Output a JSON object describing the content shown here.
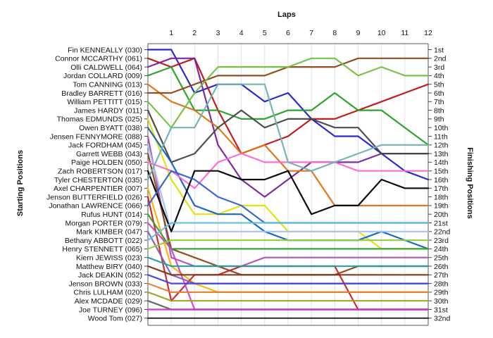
{
  "chart_data": {
    "type": "line",
    "title": "",
    "xlabel": "Laps",
    "ylabel_left": "Starting Positions",
    "ylabel_right": "Finishing Positions",
    "x_ticks": [
      "1",
      "2",
      "3",
      "4",
      "5",
      "6",
      "7",
      "8",
      "9",
      "10",
      "11",
      "12"
    ],
    "finish_labels": [
      "1st",
      "2nd",
      "3rd",
      "4th",
      "5th",
      "6th",
      "7th",
      "8th",
      "9th",
      "10th",
      "11th",
      "12th",
      "13th",
      "14th",
      "15th",
      "16th",
      "17th",
      "18th",
      "19th",
      "20th",
      "21st",
      "22nd",
      "23rd",
      "24th",
      "25th",
      "26th",
      "27th",
      "28th",
      "29th",
      "30th",
      "31st",
      "32nd"
    ],
    "grid": "vertical",
    "series": [
      {
        "name": "Fin KENNEALLY (030)",
        "color": "#1f1fd0",
        "positions": [
          1,
          1,
          6,
          5,
          5,
          7,
          6,
          9,
          11,
          11,
          13,
          15,
          16
        ]
      },
      {
        "name": "Connor MCCARTHY (061)",
        "color": "#c01010",
        "positions": [
          2,
          3,
          2,
          8,
          13,
          12,
          11,
          9,
          9,
          8,
          7,
          6,
          5
        ]
      },
      {
        "name": "Olli CALDWELL (064)",
        "color": "#7a1fa0",
        "positions": [
          3,
          2,
          2,
          12,
          16,
          18,
          16,
          14,
          14,
          14,
          13,
          13,
          13
        ]
      },
      {
        "name": "Jordan COLLARD (009)",
        "color": "#20a020",
        "positions": [
          4,
          3,
          8,
          8,
          9,
          9,
          8,
          8,
          6,
          8,
          8,
          10,
          12
        ]
      },
      {
        "name": "Tom CANNING (013)",
        "color": "#e07010",
        "positions": [
          5,
          7,
          8,
          10,
          13,
          12,
          15,
          15,
          19,
          19,
          19,
          19,
          19
        ]
      },
      {
        "name": "Bradley BARRETT (016)",
        "color": "#8b4513",
        "positions": [
          6,
          6,
          5,
          4,
          4,
          4,
          3,
          3,
          3,
          2,
          2,
          2,
          2
        ]
      },
      {
        "name": "William PETTITT (015)",
        "color": "#70c040",
        "positions": [
          7,
          10,
          6,
          3,
          3,
          3,
          3,
          2,
          2,
          4,
          3,
          4,
          4
        ]
      },
      {
        "name": "James HARDY (011)",
        "color": "#444444",
        "positions": [
          8,
          14,
          13,
          10,
          8,
          10,
          9,
          9,
          10,
          10,
          13,
          13,
          13
        ]
      },
      {
        "name": "Thomas EDMUNDS (025)",
        "color": "#e0e000",
        "positions": [
          9,
          16,
          20,
          20,
          19,
          19,
          22,
          22,
          22,
          22,
          24,
          24,
          24
        ]
      },
      {
        "name": "Owen BYATT (038)",
        "color": "#1060c0",
        "positions": [
          10,
          14,
          19,
          20,
          20,
          22,
          23,
          23,
          23,
          23,
          22,
          23,
          24
        ]
      },
      {
        "name": "Jensen FENNYMORE (088)",
        "color": "#b050b0",
        "positions": [
          11,
          25,
          26,
          26,
          26,
          25,
          25,
          25,
          25,
          25,
          25,
          25,
          25
        ]
      },
      {
        "name": "Jack FORDHAM (045)",
        "color": "#a0c0ff",
        "positions": [
          12,
          22,
          22,
          22,
          22,
          22,
          22,
          22,
          22,
          22,
          22,
          22,
          22
        ]
      },
      {
        "name": "Garrett WEBB (043)",
        "color": "#8b4513",
        "positions": [
          13,
          24,
          25,
          26,
          27,
          27,
          27,
          27,
          27,
          26,
          26,
          26,
          26
        ]
      },
      {
        "name": "Paige HOLDEN (050)",
        "color": "#ff66cc",
        "positions": [
          14,
          15,
          17,
          14,
          13,
          14,
          14,
          14,
          14,
          15,
          15,
          15,
          15
        ]
      },
      {
        "name": "Zach ROBERTSON (017)",
        "color": "#000000",
        "positions": [
          15,
          22,
          15,
          15,
          16,
          16,
          15,
          20,
          19,
          19,
          16,
          17,
          17
        ]
      },
      {
        "name": "Tyler CHESTERTON (035)",
        "color": "#70b0b0",
        "positions": [
          16,
          10,
          10,
          5,
          5,
          5,
          14,
          15,
          14,
          13,
          12,
          12,
          12
        ]
      },
      {
        "name": "Axel CHARPENTIER (007)",
        "color": "#ffb000",
        "positions": [
          17,
          26,
          28,
          29,
          29,
          29,
          29,
          29,
          29,
          29,
          29,
          29,
          29
        ]
      },
      {
        "name": "Jenson BUTTERFIELD (026)",
        "color": "#d02020",
        "positions": [
          18,
          30,
          27,
          27,
          26,
          26,
          26,
          26,
          26,
          31,
          31,
          31,
          31
        ]
      },
      {
        "name": "Jonathan LAWRENCE (066)",
        "color": "#3060d0",
        "positions": [
          19,
          15,
          16,
          18,
          19,
          21,
          21,
          21,
          21,
          21,
          21,
          21,
          21
        ]
      },
      {
        "name": "Rufus HUNT (014)",
        "color": "#30a030",
        "positions": [
          20,
          24,
          24,
          24,
          24,
          24,
          24,
          24,
          24,
          24,
          24,
          24,
          24
        ]
      },
      {
        "name": "Morgan PORTER (079)",
        "color": "#cc44cc",
        "positions": [
          21,
          24,
          31,
          31,
          31,
          31,
          31,
          31,
          31,
          31,
          31,
          31,
          31
        ]
      },
      {
        "name": "Mark KIMBER (047)",
        "color": "#8060c0",
        "positions": [
          22,
          27,
          28,
          28,
          28,
          28,
          28,
          28,
          28,
          28,
          28,
          28,
          28
        ]
      },
      {
        "name": "Bethany ABBOTT (022)",
        "color": "#60c0e0",
        "positions": [
          23,
          21,
          21,
          21,
          21,
          21,
          21,
          21,
          21,
          21,
          21,
          21,
          21
        ]
      },
      {
        "name": "Henry STENNETT (065)",
        "color": "#90d040",
        "positions": [
          24,
          23,
          23,
          23,
          23,
          23,
          23,
          23,
          23,
          23,
          23,
          23,
          23
        ]
      },
      {
        "name": "Kiern JEWISS (023)",
        "color": "#20a0a0",
        "positions": [
          25,
          26,
          26,
          26,
          26,
          26,
          26,
          26,
          26,
          26,
          26,
          26,
          26
        ]
      },
      {
        "name": "Matthew BIRY (040)",
        "color": "#803010",
        "positions": [
          26,
          27,
          27,
          27,
          27,
          27,
          27,
          27,
          27,
          27,
          27,
          27,
          27
        ]
      },
      {
        "name": "Jack DEAKIN (052)",
        "color": "#4040e0",
        "positions": [
          27,
          28,
          28,
          28,
          28,
          28,
          28,
          28,
          28,
          28,
          28,
          28,
          28
        ]
      },
      {
        "name": "Jenson BROWN (033)",
        "color": "#e08030",
        "positions": [
          28,
          29,
          29,
          29,
          29,
          29,
          29,
          29,
          29,
          29,
          29,
          29,
          29
        ]
      },
      {
        "name": "Chris LULHAM (020)",
        "color": "#a0a020",
        "positions": [
          29,
          30,
          30,
          30,
          30,
          30,
          30,
          30,
          30,
          30,
          30,
          30,
          30
        ]
      },
      {
        "name": "Alex MCDADE (029)",
        "color": "#606060",
        "positions": [
          30,
          31,
          31,
          31,
          31,
          31,
          31,
          31,
          31,
          31,
          31,
          31,
          31
        ]
      },
      {
        "name": "Joe TURNEY (096)",
        "color": "#d030d0",
        "positions": [
          31,
          31,
          31,
          31,
          31,
          31,
          31,
          31,
          31,
          31,
          31,
          31,
          31
        ]
      },
      {
        "name": "Wood Tom (027)",
        "color": "#2a2a2a",
        "positions": [
          32,
          32,
          32,
          32,
          32,
          32,
          32,
          32,
          32,
          32,
          32,
          32,
          32
        ]
      }
    ]
  }
}
